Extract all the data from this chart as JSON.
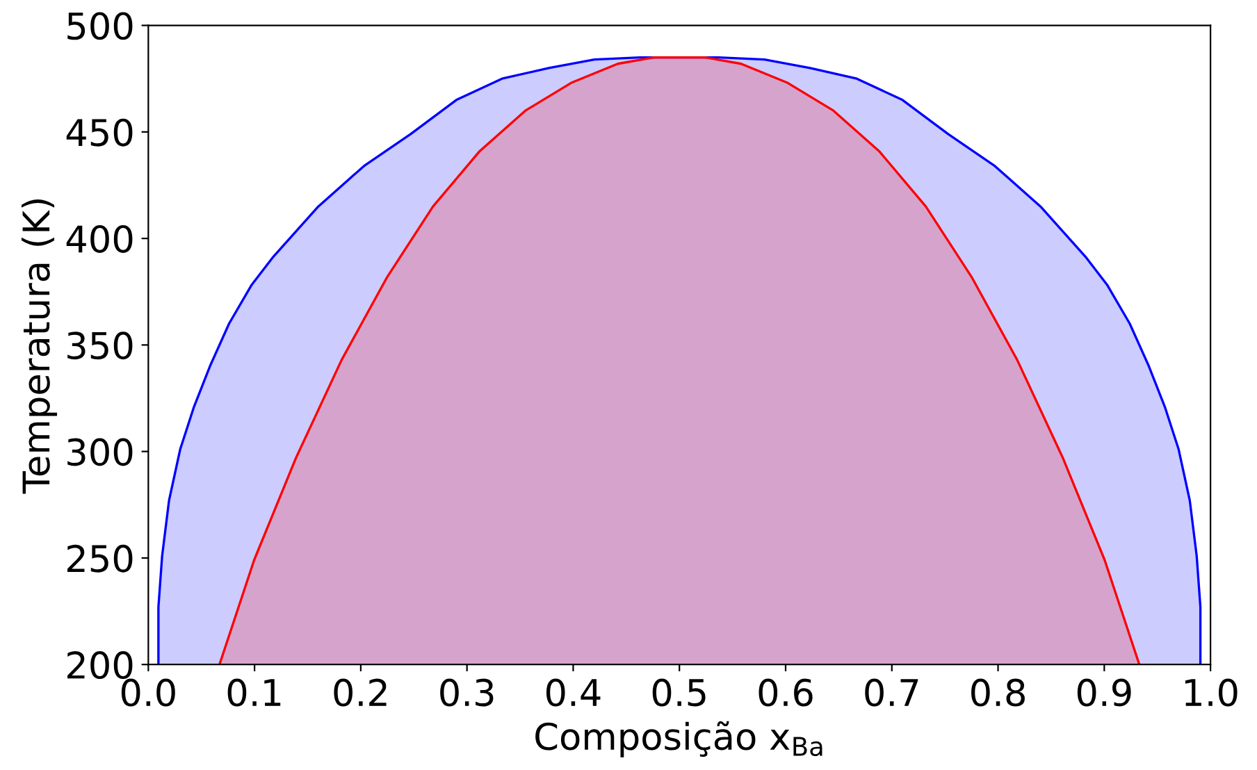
{
  "chart_data": {
    "type": "area",
    "xlabel": "Composição x$_{Ba}$",
    "ylabel": "Temperatura (K)",
    "xlim": [
      0,
      1
    ],
    "ylim": [
      200,
      500
    ],
    "xticks": [
      {
        "value": 0,
        "label": "0.0"
      },
      0.1,
      0.2,
      0.3,
      0.4,
      0.5,
      0.6,
      0.7,
      0.8,
      0.9,
      {
        "value": 1,
        "label": "1.0"
      }
    ],
    "yticks": [
      200,
      250,
      300,
      350,
      400,
      450,
      500
    ],
    "grid": false,
    "series": [
      {
        "color": "#0000ff",
        "x": [
          0.0095,
          0.0095,
          0.013,
          0.0195,
          0.03,
          0.043,
          0.058,
          0.076,
          0.097,
          0.117,
          0.16,
          0.203,
          0.247,
          0.29,
          0.333,
          0.377,
          0.42,
          0.463,
          0.5,
          0.537,
          0.58,
          0.623,
          0.667,
          0.71,
          0.753,
          0.797,
          0.84,
          0.883,
          0.903,
          0.924,
          0.942,
          0.957,
          0.97,
          0.9805,
          0.987,
          0.9905,
          0.9905
        ],
        "values": [
          200,
          227,
          251,
          277,
          301,
          321,
          340,
          360,
          378,
          391,
          415,
          434,
          449,
          465,
          475,
          480,
          484,
          485,
          485,
          485,
          484,
          480,
          475,
          465,
          449,
          434,
          415,
          391,
          378,
          360,
          340,
          321,
          301,
          277,
          251,
          227,
          200
        ]
      },
      {
        "color": "#ff0000",
        "x": [
          0.067,
          0.0996,
          0.139,
          0.182,
          0.225,
          0.268,
          0.312,
          0.355,
          0.398,
          0.442,
          0.476,
          0.5,
          0.524,
          0.558,
          0.602,
          0.645,
          0.688,
          0.732,
          0.775,
          0.818,
          0.861,
          0.9004,
          0.933
        ],
        "values": [
          200,
          249,
          297,
          343,
          382,
          415,
          441,
          460,
          473,
          482,
          485,
          485,
          485,
          482,
          473,
          460,
          441,
          415,
          382,
          343,
          297,
          249,
          200
        ]
      }
    ]
  }
}
